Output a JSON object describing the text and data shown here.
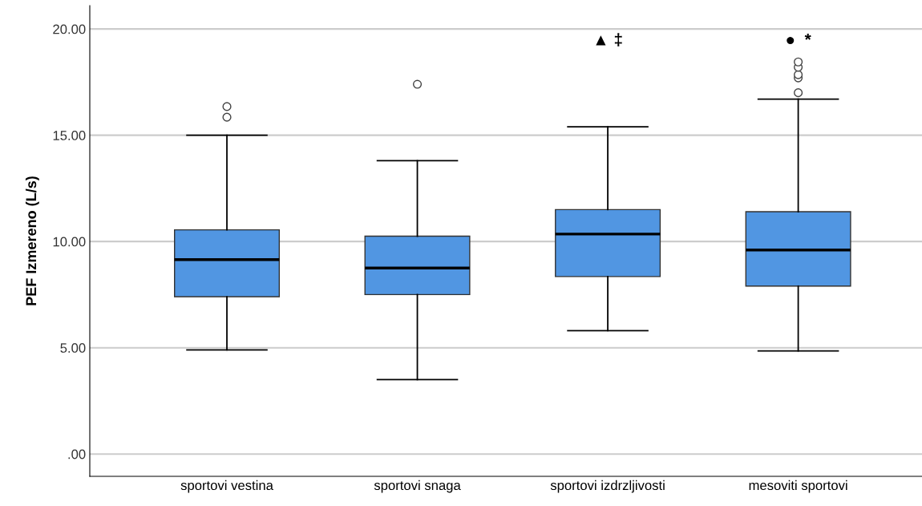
{
  "chart_data": {
    "type": "box",
    "ylabel": "PEF Izmereno (L/s)",
    "categories": [
      "sportovi vestina",
      "sportovi snaga",
      "sportovi izdrzljivosti",
      "mesoviti sportovi"
    ],
    "color": "#5196e2",
    "boxes": [
      {
        "low": 4.9,
        "q1": 7.4,
        "median": 9.15,
        "q3": 10.55,
        "high": 15.0,
        "outliers": [
          15.85,
          16.35
        ]
      },
      {
        "low": 3.5,
        "q1": 7.5,
        "median": 8.75,
        "q3": 10.25,
        "high": 13.8,
        "outliers": [
          17.4
        ]
      },
      {
        "low": 5.8,
        "q1": 8.35,
        "median": 10.35,
        "q3": 11.5,
        "high": 15.4
      },
      {
        "low": 4.85,
        "q1": 7.9,
        "median": 9.6,
        "q3": 11.4,
        "high": 16.7,
        "outliers": [
          17.0,
          17.7,
          17.85,
          18.2,
          18.45
        ]
      }
    ],
    "annotations": [
      "▲ ‡",
      "●  *"
    ],
    "ylim": [
      -1.05,
      21.1
    ],
    "yticks": [
      {
        "value": 0,
        "label": ".00"
      },
      {
        "value": 5,
        "label": "5.00"
      },
      {
        "value": 10,
        "label": "10.00"
      },
      {
        "value": 15,
        "label": "15.00"
      },
      {
        "value": 20,
        "label": "20.00"
      }
    ],
    "grid": "y"
  }
}
